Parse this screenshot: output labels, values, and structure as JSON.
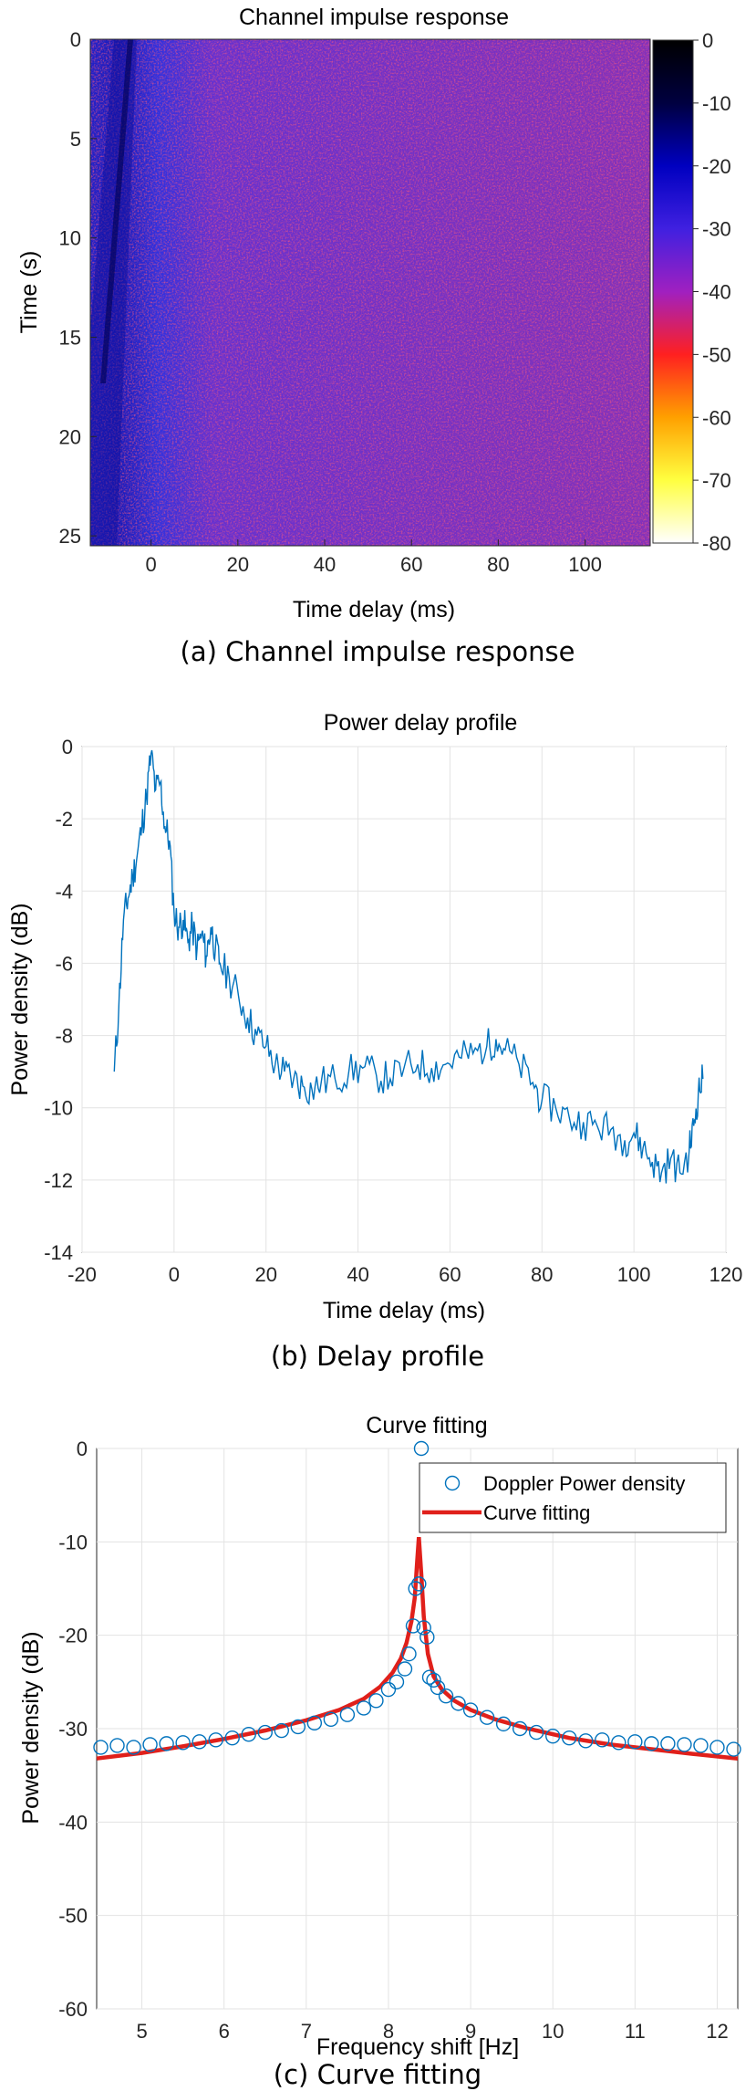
{
  "chart_data": [
    {
      "type": "heatmap",
      "title": "Channel impulse response",
      "xlabel": "Time delay (ms)",
      "ylabel": "Time (s)",
      "caption": "(a) Channel impulse response",
      "xlim": [
        -14,
        115
      ],
      "ylim": [
        0,
        25.5
      ],
      "xticks": [
        0,
        20,
        40,
        60,
        80,
        100
      ],
      "yticks": [
        0,
        5,
        10,
        15,
        20,
        25
      ],
      "colorbar_ticks": [
        0,
        -10,
        -20,
        -30,
        -40,
        -50,
        -60,
        -70,
        -80
      ],
      "clim": [
        -80,
        0
      ],
      "colormap": [
        "#ffffff",
        "#ffff40",
        "#ffa000",
        "#ff2020",
        "#a020c0",
        "#4020e0",
        "#0000c0",
        "#000040",
        "#000000"
      ],
      "description_values": {
        "strong_region_delay_ms": [
          -14,
          -2
        ],
        "background_level_db": -30
      }
    },
    {
      "type": "line",
      "title": "Power delay profile",
      "xlabel": "Time delay (ms)",
      "ylabel": "Power density (dB)",
      "caption": "(b) Delay profile",
      "xlim": [
        -20,
        120
      ],
      "ylim": [
        -14,
        0
      ],
      "xticks": [
        -20,
        0,
        20,
        40,
        60,
        80,
        100,
        120
      ],
      "yticks": [
        0,
        -2,
        -4,
        -6,
        -8,
        -10,
        -12,
        -14
      ],
      "grid": true,
      "line_color": "#0072bd",
      "series": [
        {
          "x": [
            -13,
            -12,
            -11,
            -10,
            -9,
            -8,
            -7,
            -6,
            -5,
            -4,
            -3,
            -2,
            -1,
            0,
            1,
            2,
            3,
            4,
            5,
            6,
            7,
            8,
            9,
            10,
            12,
            14,
            16,
            18,
            20,
            22,
            24,
            26,
            28,
            30,
            32,
            35,
            38,
            41,
            44,
            47,
            50,
            53,
            56,
            59,
            62,
            65,
            68,
            70,
            72,
            75,
            78,
            80,
            83,
            86,
            89,
            92,
            95,
            98,
            100,
            102,
            104,
            106,
            108,
            110,
            112,
            113,
            114,
            115
          ],
          "values": [
            -9.0,
            -7.2,
            -4.8,
            -4.2,
            -3.6,
            -3.0,
            -2.2,
            -1.4,
            -0.2,
            -1.2,
            -1.0,
            -2.2,
            -2.6,
            -4.6,
            -5.0,
            -4.8,
            -5.4,
            -5.0,
            -5.6,
            -5.2,
            -5.8,
            -5.0,
            -5.6,
            -6.0,
            -6.4,
            -6.9,
            -7.5,
            -8.0,
            -8.3,
            -8.8,
            -9.0,
            -9.2,
            -9.4,
            -9.5,
            -9.3,
            -9.2,
            -9.0,
            -8.9,
            -9.1,
            -9.2,
            -8.9,
            -8.8,
            -8.9,
            -8.8,
            -8.6,
            -8.5,
            -8.3,
            -8.1,
            -8.4,
            -8.8,
            -9.3,
            -9.8,
            -10.0,
            -10.3,
            -10.4,
            -10.5,
            -10.6,
            -10.9,
            -10.7,
            -11.1,
            -11.5,
            -11.8,
            -11.4,
            -11.8,
            -11.2,
            -10.5,
            -9.6,
            -9.2
          ]
        }
      ]
    },
    {
      "type": "scatter",
      "title": "Curve fitting",
      "xlabel": "Frequency shift [Hz]",
      "ylabel": "Power density (dB)",
      "caption": "(c) Curve fitting",
      "xlim": [
        4.45,
        12.25
      ],
      "ylim": [
        -60,
        0
      ],
      "xticks": [
        5,
        6,
        7,
        8,
        9,
        10,
        11,
        12
      ],
      "yticks": [
        0,
        -10,
        -20,
        -30,
        -40,
        -50,
        -60
      ],
      "grid": true,
      "legend_position": "top-right",
      "series": [
        {
          "name": "Doppler Power density",
          "marker": "circle",
          "color": "#0072bd",
          "x": [
            4.5,
            4.7,
            4.9,
            5.1,
            5.3,
            5.5,
            5.7,
            5.9,
            6.1,
            6.3,
            6.5,
            6.7,
            6.9,
            7.1,
            7.3,
            7.5,
            7.7,
            7.85,
            8.0,
            8.1,
            8.2,
            8.25,
            8.3,
            8.33,
            8.37,
            8.4,
            8.43,
            8.47,
            8.5,
            8.55,
            8.6,
            8.7,
            8.85,
            9.0,
            9.2,
            9.4,
            9.6,
            9.8,
            10.0,
            10.2,
            10.4,
            10.6,
            10.8,
            11.0,
            11.2,
            11.4,
            11.6,
            11.8,
            12.0,
            12.2
          ],
          "values": [
            -32.0,
            -31.8,
            -32.0,
            -31.7,
            -31.6,
            -31.5,
            -31.4,
            -31.2,
            -31.0,
            -30.6,
            -30.4,
            -30.2,
            -29.8,
            -29.4,
            -29.0,
            -28.5,
            -27.8,
            -27.0,
            -25.8,
            -25.0,
            -23.6,
            -22.0,
            -19.0,
            -15.0,
            -14.5,
            0.0,
            -19.2,
            -20.2,
            -24.5,
            -24.8,
            -25.6,
            -26.5,
            -27.3,
            -28.0,
            -28.8,
            -29.5,
            -30.0,
            -30.4,
            -30.8,
            -31.0,
            -31.3,
            -31.2,
            -31.5,
            -31.4,
            -31.6,
            -31.6,
            -31.7,
            -31.8,
            -32.0,
            -32.2
          ]
        },
        {
          "name": "Curve fitting",
          "line_color": "#e0201b",
          "x": [
            4.45,
            5.0,
            5.5,
            6.0,
            6.5,
            7.0,
            7.4,
            7.7,
            7.9,
            8.05,
            8.15,
            8.22,
            8.28,
            8.32,
            8.35,
            8.37,
            8.4,
            8.43,
            8.48,
            8.55,
            8.65,
            8.8,
            9.0,
            9.3,
            9.7,
            10.2,
            10.7,
            11.2,
            11.7,
            12.25
          ],
          "values": [
            -33.2,
            -32.6,
            -31.9,
            -31.1,
            -30.2,
            -29.1,
            -28.0,
            -26.8,
            -25.5,
            -24.0,
            -22.5,
            -20.8,
            -18.5,
            -16.0,
            -12.0,
            -9.5,
            -13.5,
            -18.0,
            -22.0,
            -24.4,
            -25.8,
            -27.0,
            -28.0,
            -29.0,
            -30.0,
            -31.0,
            -31.7,
            -32.2,
            -32.7,
            -33.2
          ]
        }
      ]
    }
  ]
}
